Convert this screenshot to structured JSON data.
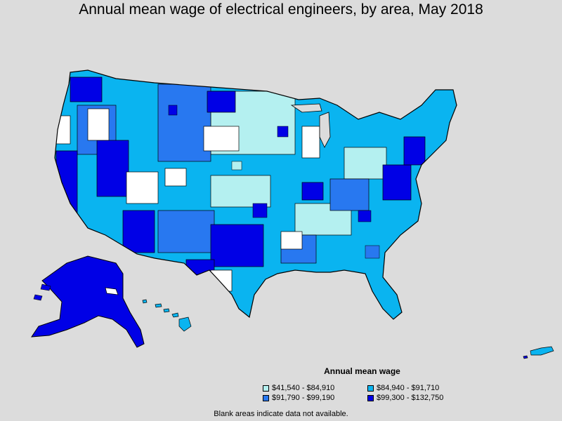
{
  "title": "Annual mean wage of electrical engineers, by area, May 2018",
  "legend": {
    "title": "Annual mean wage",
    "items": [
      {
        "label": "$41,540 - $84,910",
        "color": "#b4f0f0"
      },
      {
        "label": "$84,940 - $91,710",
        "color": "#0ab4f0"
      },
      {
        "label": "$91,790 - $99,190",
        "color": "#2878f0"
      },
      {
        "label": "$99,300 - $132,750",
        "color": "#0000e6"
      }
    ]
  },
  "blank_color": "#ffffff",
  "footnote": "Blank areas indicate data not available."
}
